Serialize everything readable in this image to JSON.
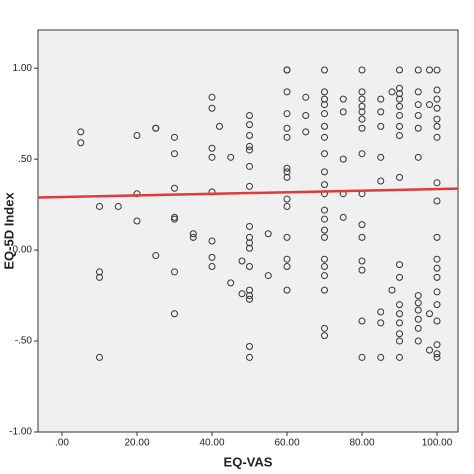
{
  "chart_data": {
    "type": "scatter",
    "x_label": "EQ-VAS",
    "y_label": "EQ-5D Index",
    "x": [
      5,
      5,
      10,
      10,
      10,
      10,
      15,
      20,
      20,
      20,
      25,
      25,
      25,
      30,
      30,
      30,
      30,
      30,
      30,
      30,
      35,
      35,
      40,
      40,
      40,
      40,
      40,
      40,
      40,
      40,
      42,
      45,
      45,
      48,
      48,
      50,
      50,
      50,
      50,
      50,
      50,
      50,
      50,
      50,
      50,
      50,
      50,
      50,
      50,
      50,
      50,
      50,
      55,
      55,
      60,
      60,
      60,
      60,
      60,
      60,
      60,
      60,
      60,
      60,
      60,
      60,
      60,
      60,
      60,
      65,
      65,
      65,
      70,
      70,
      70,
      70,
      70,
      70,
      70,
      70,
      70,
      70,
      70,
      70,
      70,
      70,
      70,
      70,
      70,
      70,
      70,
      70,
      70,
      75,
      75,
      75,
      75,
      75,
      80,
      80,
      80,
      80,
      80,
      80,
      80,
      80,
      80,
      80,
      80,
      80,
      80,
      80,
      80,
      85,
      85,
      85,
      85,
      85,
      85,
      85,
      85,
      88,
      88,
      90,
      90,
      90,
      90,
      90,
      90,
      90,
      90,
      90,
      90,
      90,
      90,
      90,
      90,
      90,
      90,
      90,
      95,
      95,
      95,
      95,
      95,
      95,
      95,
      95,
      95,
      95,
      95,
      95,
      98,
      98,
      98,
      98,
      100,
      100,
      100,
      100,
      100,
      100,
      100,
      100,
      100,
      100,
      100,
      100,
      100,
      100,
      100,
      100,
      100,
      100,
      100
    ],
    "values": [
      0.65,
      0.59,
      0.24,
      -0.12,
      -0.15,
      -0.59,
      0.24,
      0.63,
      0.31,
      0.16,
      0.67,
      0.67,
      -0.03,
      0.62,
      0.53,
      0.34,
      0.18,
      0.17,
      -0.12,
      -0.35,
      0.09,
      0.07,
      0.84,
      0.78,
      0.56,
      0.51,
      0.32,
      0.05,
      -0.04,
      -0.09,
      0.68,
      0.51,
      -0.18,
      -0.06,
      -0.24,
      0.74,
      0.69,
      0.63,
      0.57,
      0.55,
      0.46,
      0.35,
      0.13,
      0.07,
      0.04,
      0.01,
      -0.09,
      -0.22,
      -0.25,
      -0.27,
      -0.53,
      -0.59,
      0.09,
      -0.14,
      0.99,
      0.99,
      0.87,
      0.75,
      0.67,
      0.62,
      0.45,
      0.43,
      0.4,
      0.28,
      0.24,
      0.07,
      -0.05,
      -0.09,
      -0.22,
      0.84,
      0.74,
      0.65,
      0.99,
      0.87,
      0.83,
      0.8,
      0.75,
      0.68,
      0.62,
      0.53,
      0.43,
      0.36,
      0.31,
      0.22,
      0.17,
      0.11,
      0.07,
      -0.05,
      -0.09,
      -0.14,
      -0.22,
      -0.43,
      -0.47,
      0.83,
      0.76,
      0.5,
      0.31,
      0.18,
      0.99,
      0.87,
      0.83,
      0.79,
      0.76,
      0.72,
      0.67,
      0.53,
      0.31,
      0.14,
      0.07,
      -0.06,
      -0.11,
      -0.39,
      -0.59,
      0.83,
      0.76,
      0.68,
      0.51,
      0.38,
      -0.34,
      -0.4,
      -0.59,
      0.87,
      -0.22,
      0.99,
      0.89,
      0.86,
      0.83,
      0.79,
      0.74,
      0.68,
      0.63,
      0.4,
      -0.08,
      -0.15,
      -0.3,
      -0.35,
      -0.4,
      -0.46,
      -0.5,
      -0.59,
      0.99,
      0.87,
      0.8,
      0.74,
      0.67,
      0.51,
      -0.25,
      -0.29,
      -0.33,
      -0.38,
      -0.43,
      -0.5,
      0.99,
      0.8,
      -0.35,
      -0.55,
      0.99,
      0.88,
      0.83,
      0.78,
      0.72,
      0.68,
      0.62,
      0.37,
      0.27,
      0.07,
      -0.05,
      -0.1,
      -0.15,
      -0.23,
      -0.3,
      -0.39,
      -0.52,
      -0.57,
      -0.59
    ],
    "color": "#333333",
    "fit_line": {
      "x": [
        -6.4,
        105.6
      ],
      "y": [
        0.289,
        0.338
      ],
      "color": "#e03a3a"
    },
    "xlim": [
      -6.4,
      105.6
    ],
    "ylim": [
      -1.0,
      1.21
    ],
    "xticks": [
      {
        "value": 0,
        "label": ".00"
      },
      {
        "value": 20,
        "label": "20.00"
      },
      {
        "value": 40,
        "label": "40.00"
      },
      {
        "value": 60,
        "label": "60.00"
      },
      {
        "value": 80,
        "label": "80.00"
      },
      {
        "value": 100,
        "label": "100.00"
      }
    ],
    "yticks": [
      {
        "value": -1,
        "label": "-1.00"
      },
      {
        "value": -0.5,
        "label": "-.50"
      },
      {
        "value": 0,
        "label": "0.00"
      },
      {
        "value": 0.5,
        "label": ".50"
      },
      {
        "value": 1,
        "label": "1.00"
      }
    ],
    "grid": false
  }
}
